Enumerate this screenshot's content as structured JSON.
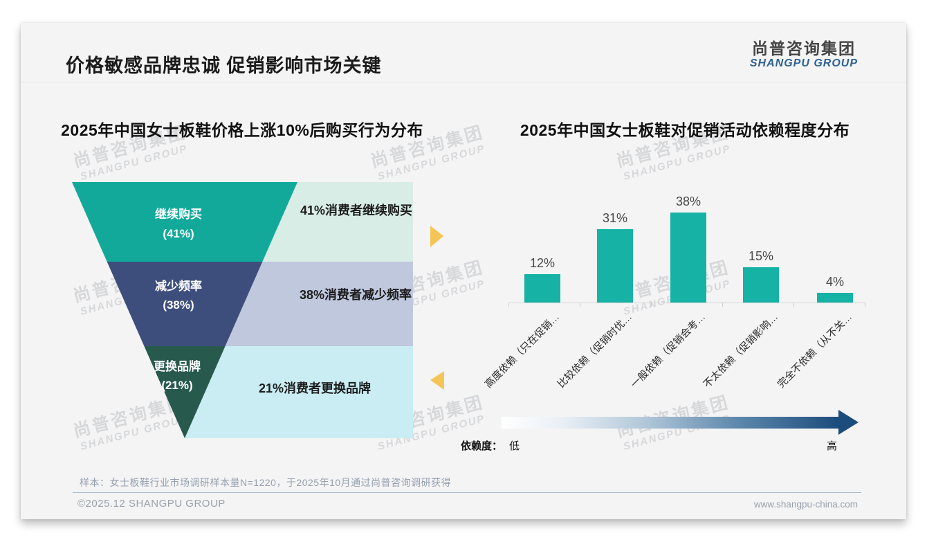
{
  "slide": {
    "title": "价格敏感品牌忠诚 促销影响市场关键",
    "logo": {
      "cn": "尚普咨询集团",
      "en": "SHANGPU GROUP"
    },
    "watermark": {
      "cn": "尚普咨询集团",
      "en": "SHANGPU GROUP"
    },
    "footer": {
      "sample_note": "样本：女士板鞋行业市场调研样本量N=1220，于2025年10月通过尚普咨询调研获得",
      "copyright": "©2025.12 SHANGPU GROUP",
      "website": "www.shangpu-china.com"
    }
  },
  "chart_data": [
    {
      "type": "funnel",
      "title": "2025年中国女士板鞋价格上涨10%后购买行为分布",
      "unit": "%",
      "segments": [
        {
          "label": "继续购买",
          "value": 41,
          "annotation": "41%消费者继续购买",
          "color": "#12a99b",
          "panel_color": "#d9ede7"
        },
        {
          "label": "减少频率",
          "value": 38,
          "annotation": "38%消费者减少频率",
          "color": "#3d4e7d",
          "panel_color": "#bfc8dd"
        },
        {
          "label": "更换品牌",
          "value": 21,
          "annotation": "21%消费者更换品牌",
          "color": "#27594d",
          "panel_color": "#c9edf3"
        }
      ],
      "flow_arrow_color": "#f4c455"
    },
    {
      "type": "bar",
      "title": "2025年中国女士板鞋对促销活动依赖程度分布",
      "categories": [
        "高度依赖（只在促销…",
        "比较依赖（促销时优…",
        "一般依赖（促销会考…",
        "不太依赖（促销影响…",
        "完全不依赖（从不关…"
      ],
      "values": [
        12,
        31,
        38,
        15,
        4
      ],
      "unit": "%",
      "bar_color": "#16b2a6",
      "ylim": [
        0,
        44
      ],
      "grid": false,
      "legend": {
        "prefix": "依赖度：",
        "low": "低",
        "high": "高"
      }
    }
  ]
}
